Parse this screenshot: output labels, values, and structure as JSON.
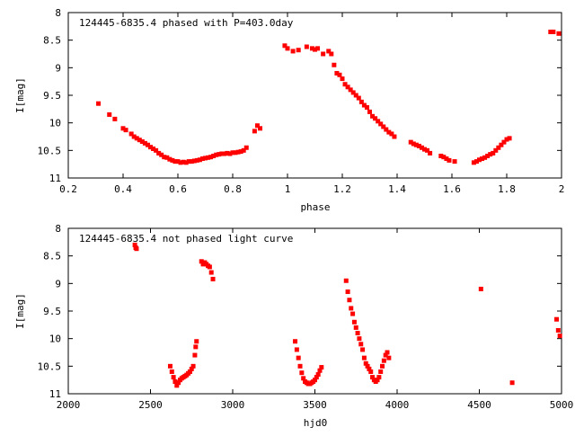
{
  "chart_data": [
    {
      "type": "scatter",
      "title": "124445-6835.4 phased with P=403.0day",
      "xlabel": "phase",
      "ylabel": "I[mag]",
      "xlim": [
        0.2,
        2.0
      ],
      "ylim": [
        8,
        11
      ],
      "y_inverted": true,
      "grid": false,
      "marker_color": "#ff0000",
      "xticks": [
        "0.2",
        "0.4",
        "0.6",
        "0.8",
        "1",
        "1.2",
        "1.4",
        "1.6",
        "1.8",
        "2"
      ],
      "yticks": [
        "8",
        "8.5",
        "9",
        "9.5",
        "10",
        "10.5",
        "11"
      ],
      "series": [
        {
          "x": [
            0.31,
            0.35,
            0.37,
            0.4,
            0.41,
            0.43,
            0.44,
            0.45,
            0.46,
            0.47,
            0.48,
            0.49,
            0.5,
            0.51,
            0.52,
            0.53,
            0.54,
            0.55,
            0.56,
            0.57,
            0.58,
            0.59,
            0.6,
            0.61,
            0.62,
            0.63,
            0.64,
            0.65,
            0.66,
            0.67,
            0.68,
            0.69,
            0.7,
            0.71,
            0.72,
            0.73,
            0.74,
            0.75,
            0.76,
            0.77,
            0.78,
            0.79,
            0.8,
            0.81,
            0.82,
            0.83,
            0.84,
            0.85,
            0.88,
            0.89,
            0.9,
            0.99,
            1.0,
            1.02,
            1.04,
            1.07,
            1.09,
            1.1,
            1.11,
            1.13,
            1.15,
            1.16,
            1.17,
            1.18,
            1.19,
            1.2,
            1.21,
            1.22,
            1.23,
            1.24,
            1.25,
            1.26,
            1.27,
            1.28,
            1.29,
            1.3,
            1.31,
            1.32,
            1.33,
            1.34,
            1.35,
            1.36,
            1.37,
            1.38,
            1.39,
            1.45,
            1.46,
            1.47,
            1.48,
            1.49,
            1.5,
            1.51,
            1.52,
            1.56,
            1.57,
            1.58,
            1.59,
            1.61,
            1.68,
            1.69,
            1.7,
            1.71,
            1.72,
            1.73,
            1.74,
            1.75,
            1.76,
            1.77,
            1.78,
            1.79,
            1.8,
            1.81,
            1.96,
            1.97,
            1.99
          ],
          "y": [
            9.65,
            9.85,
            9.93,
            10.1,
            10.13,
            10.2,
            10.25,
            10.28,
            10.31,
            10.34,
            10.37,
            10.4,
            10.44,
            10.47,
            10.5,
            10.55,
            10.58,
            10.62,
            10.63,
            10.66,
            10.68,
            10.7,
            10.7,
            10.72,
            10.71,
            10.72,
            10.7,
            10.7,
            10.69,
            10.68,
            10.67,
            10.65,
            10.64,
            10.63,
            10.62,
            10.6,
            10.58,
            10.57,
            10.56,
            10.56,
            10.55,
            10.56,
            10.54,
            10.54,
            10.53,
            10.52,
            10.5,
            10.45,
            10.15,
            10.05,
            10.1,
            8.6,
            8.65,
            8.7,
            8.68,
            8.62,
            8.65,
            8.67,
            8.65,
            8.75,
            8.7,
            8.75,
            8.95,
            9.1,
            9.13,
            9.2,
            9.3,
            9.35,
            9.4,
            9.45,
            9.5,
            9.55,
            9.62,
            9.68,
            9.72,
            9.8,
            9.88,
            9.92,
            9.97,
            10.02,
            10.07,
            10.12,
            10.17,
            10.2,
            10.25,
            10.35,
            10.38,
            10.4,
            10.42,
            10.45,
            10.48,
            10.5,
            10.55,
            10.6,
            10.62,
            10.65,
            10.68,
            10.7,
            10.72,
            10.7,
            10.67,
            10.65,
            10.63,
            10.6,
            10.57,
            10.55,
            10.5,
            10.45,
            10.4,
            10.35,
            10.3,
            10.28,
            8.35,
            8.35,
            8.38
          ]
        }
      ]
    },
    {
      "type": "scatter",
      "title": "124445-6835.4 not phased light curve",
      "xlabel": "hjd0",
      "ylabel": "I[mag]",
      "xlim": [
        2000,
        5000
      ],
      "ylim": [
        8,
        11
      ],
      "y_inverted": true,
      "grid": false,
      "marker_color": "#ff0000",
      "xticks": [
        "2000",
        "2500",
        "3000",
        "3500",
        "4000",
        "4500",
        "5000"
      ],
      "yticks": [
        "8",
        "8.5",
        "9",
        "9.5",
        "10",
        "10.5",
        "11"
      ],
      "series": [
        {
          "x": [
            2405,
            2410,
            2415,
            2620,
            2630,
            2640,
            2650,
            2660,
            2670,
            2680,
            2690,
            2700,
            2710,
            2720,
            2730,
            2740,
            2750,
            2760,
            2770,
            2775,
            2780,
            2810,
            2820,
            2830,
            2840,
            2850,
            2860,
            2870,
            2880,
            3380,
            3390,
            3400,
            3410,
            3420,
            3430,
            3440,
            3450,
            3460,
            3470,
            3480,
            3490,
            3500,
            3510,
            3520,
            3530,
            3540,
            3690,
            3700,
            3710,
            3720,
            3730,
            3740,
            3750,
            3760,
            3770,
            3780,
            3790,
            3800,
            3810,
            3820,
            3830,
            3840,
            3850,
            3860,
            3870,
            3880,
            3890,
            3900,
            3910,
            3920,
            3930,
            3940,
            3950,
            4510,
            4700,
            4970,
            4980,
            4990
          ],
          "y": [
            8.3,
            8.35,
            8.37,
            10.5,
            10.6,
            10.7,
            10.78,
            10.85,
            10.8,
            10.75,
            10.72,
            10.7,
            10.68,
            10.66,
            10.63,
            10.6,
            10.55,
            10.5,
            10.3,
            10.15,
            10.05,
            8.6,
            8.65,
            8.62,
            8.65,
            8.68,
            8.7,
            8.8,
            8.92,
            10.05,
            10.2,
            10.35,
            10.5,
            10.62,
            10.72,
            10.78,
            10.8,
            10.82,
            10.82,
            10.8,
            10.78,
            10.75,
            10.7,
            10.65,
            10.58,
            10.52,
            8.95,
            9.15,
            9.3,
            9.45,
            9.55,
            9.7,
            9.8,
            9.9,
            10.0,
            10.1,
            10.2,
            10.35,
            10.45,
            10.5,
            10.55,
            10.6,
            10.7,
            10.75,
            10.78,
            10.75,
            10.7,
            10.6,
            10.5,
            10.4,
            10.3,
            10.25,
            10.35,
            9.1,
            10.8,
            9.65,
            9.85,
            9.95
          ]
        }
      ]
    }
  ]
}
